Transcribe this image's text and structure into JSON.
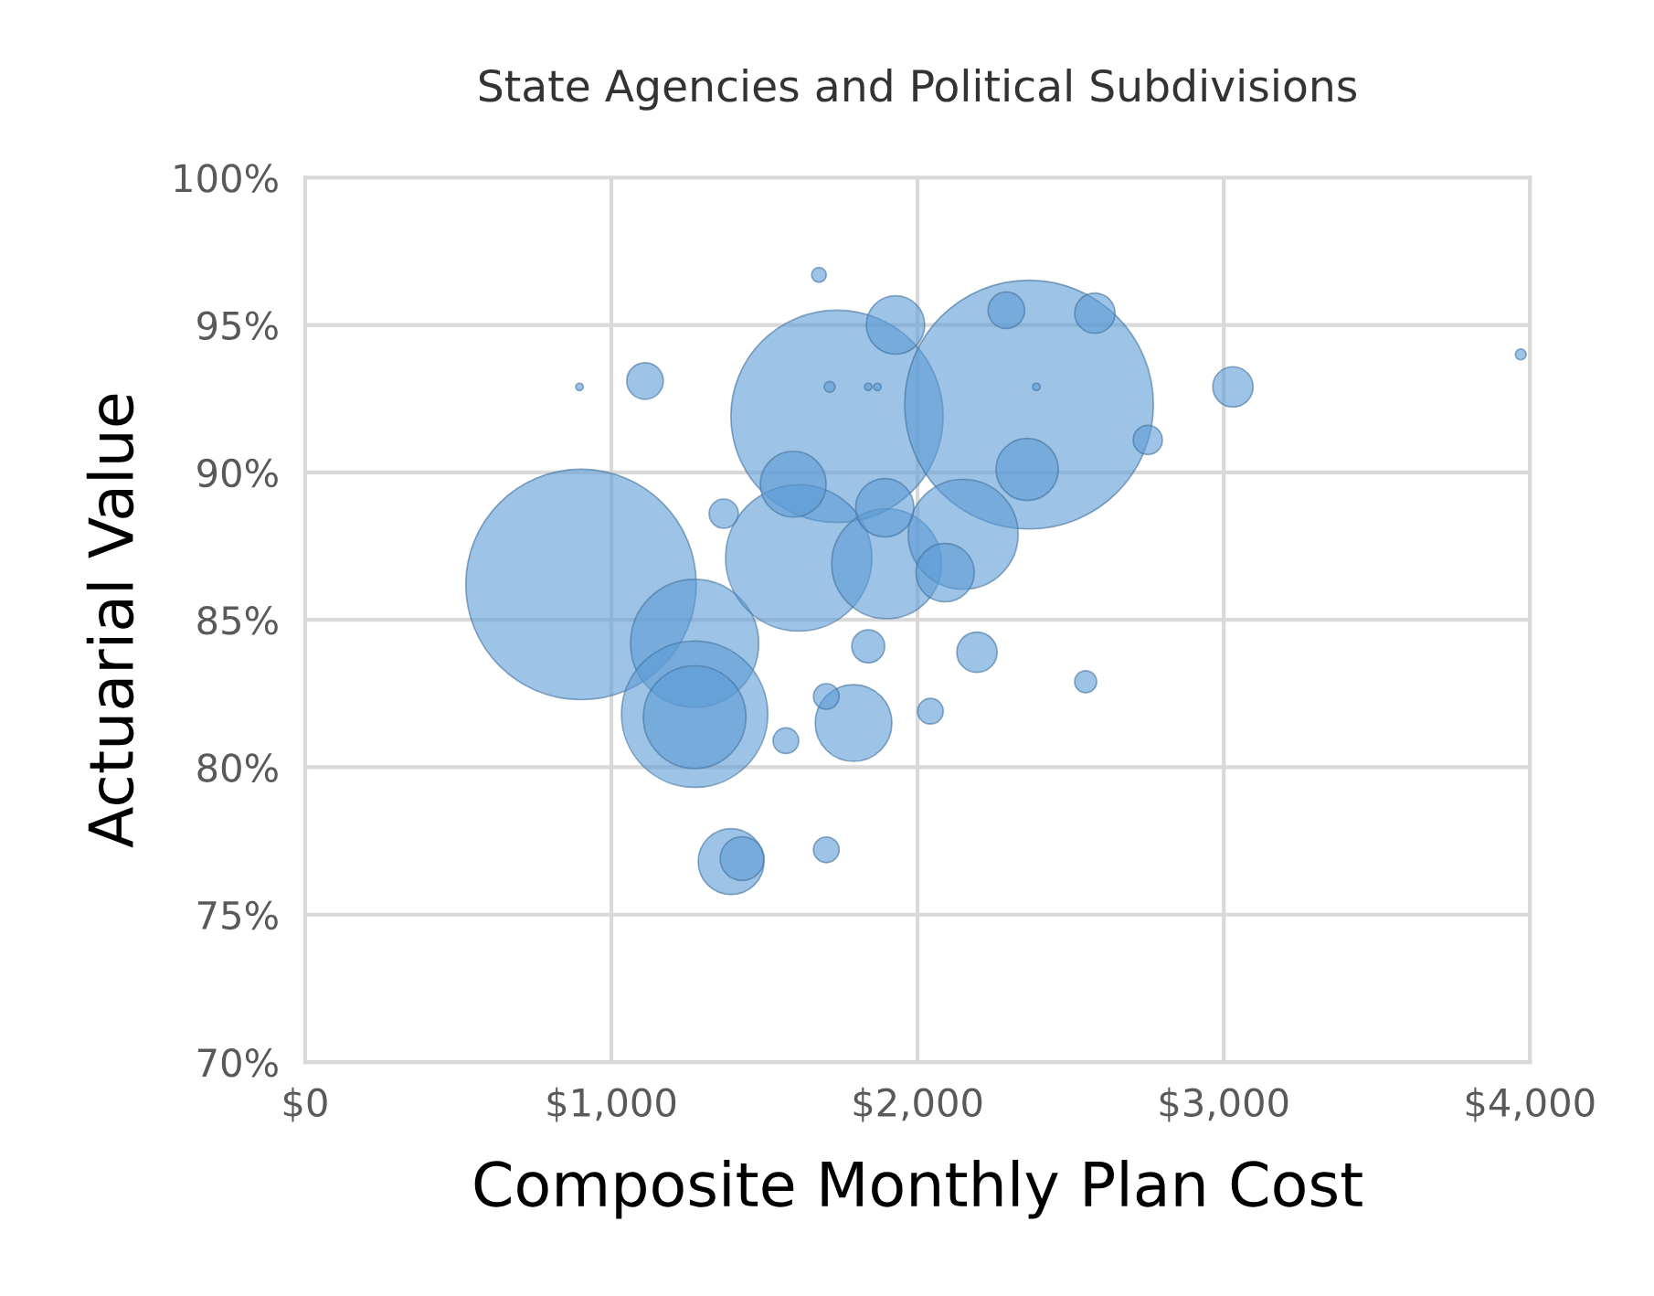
{
  "chart_data": {
    "type": "bubble",
    "title": "State Agencies and Political Subdivisions",
    "xlabel": "Composite Monthly Plan Cost",
    "ylabel": "Actuarial Value",
    "x": [
      901,
      1737,
      2364,
      1272,
      1272,
      1272,
      1612,
      1899,
      2149,
      2090,
      1893,
      1594,
      1928,
      2358,
      2290,
      2579,
      3030,
      2752,
      3970,
      1110,
      896,
      1367,
      1839,
      2194,
      2549,
      2042,
      1791,
      1702,
      1570,
      1391,
      1427,
      1702,
      1678,
      1713,
      1839,
      1869,
      2388
    ],
    "values": [
      86.2,
      91.9,
      92.3,
      84.2,
      81.8,
      81.7,
      87.1,
      86.9,
      87.9,
      86.6,
      88.8,
      89.6,
      95.0,
      90.1,
      95.5,
      95.4,
      92.9,
      91.1,
      94.0,
      93.1,
      92.9,
      88.6,
      84.1,
      83.9,
      82.9,
      81.9,
      81.5,
      82.4,
      80.9,
      76.8,
      76.9,
      77.2,
      96.7,
      92.9,
      92.9,
      92.9,
      92.9
    ],
    "sizes": [
      0.858,
      0.728,
      1,
      0.265,
      0.346,
      0.17,
      0.346,
      0.195,
      0.195,
      0.055,
      0.055,
      0.07,
      0.055,
      0.0625,
      0.0216,
      0.0262,
      0.0262,
      0.0138,
      0.0019,
      0.0216,
      0.0009,
      0.0138,
      0.0175,
      0.0262,
      0.0078,
      0.0106,
      0.095,
      0.0106,
      0.0106,
      0.07,
      0.031,
      0.0106,
      0.0035,
      0.0019,
      0.0009,
      0.0009,
      0.0009
    ],
    "color": "#5b9bd5",
    "xlim": [
      0,
      4000
    ],
    "xticks": [
      {
        "value": 0,
        "label": "$0"
      },
      {
        "value": 1000,
        "label": "$1,000"
      },
      {
        "value": 2000,
        "label": "$2,000"
      },
      {
        "value": 3000,
        "label": "$3,000"
      },
      {
        "value": 4000,
        "label": "$4,000"
      }
    ],
    "ylim": [
      70,
      100
    ],
    "yticks": [
      {
        "value": 70,
        "label": "70%"
      },
      {
        "value": 75,
        "label": "75%"
      },
      {
        "value": 80,
        "label": "80%"
      },
      {
        "value": 85,
        "label": "85%"
      },
      {
        "value": 90,
        "label": "90%"
      },
      {
        "value": 95,
        "label": "95%"
      },
      {
        "value": 100,
        "label": "100%"
      }
    ],
    "grid": true
  }
}
